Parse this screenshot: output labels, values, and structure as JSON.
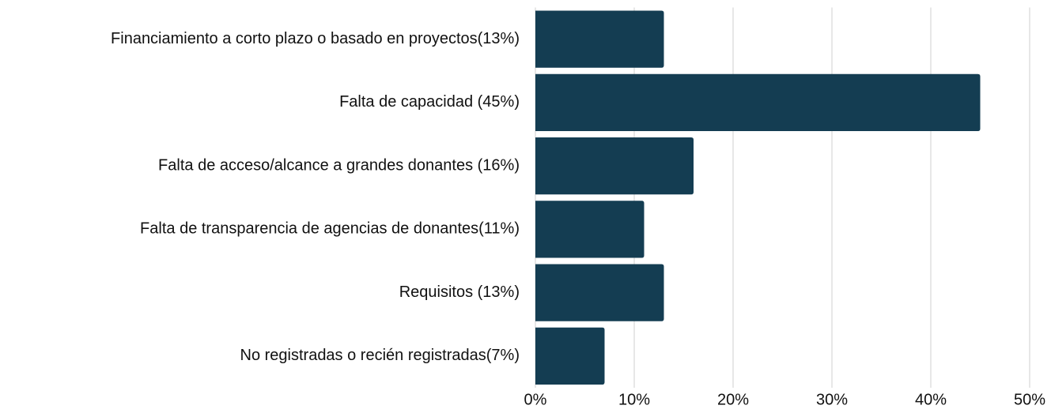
{
  "chart_data": {
    "type": "bar",
    "orientation": "horizontal",
    "categories": [
      "Financiamiento a corto plazo o basado en proyectos(13%)",
      "Falta de capacidad (45%)",
      "Falta de acceso/alcance a grandes donantes (16%)",
      "Falta de transparencia de agencias de donantes(11%)",
      "Requisitos (13%)",
      "No registradas o recién registradas(7%)"
    ],
    "values": [
      13,
      45,
      16,
      11,
      13,
      7
    ],
    "color": "#143d52",
    "xlim": [
      0,
      50
    ],
    "xticks": [
      {
        "value": 0,
        "label": "0%"
      },
      {
        "value": 10,
        "label": "10%"
      },
      {
        "value": 20,
        "label": "20%"
      },
      {
        "value": 30,
        "label": "30%"
      },
      {
        "value": 40,
        "label": "40%"
      },
      {
        "value": 50,
        "label": "50%"
      }
    ],
    "grid": true
  }
}
